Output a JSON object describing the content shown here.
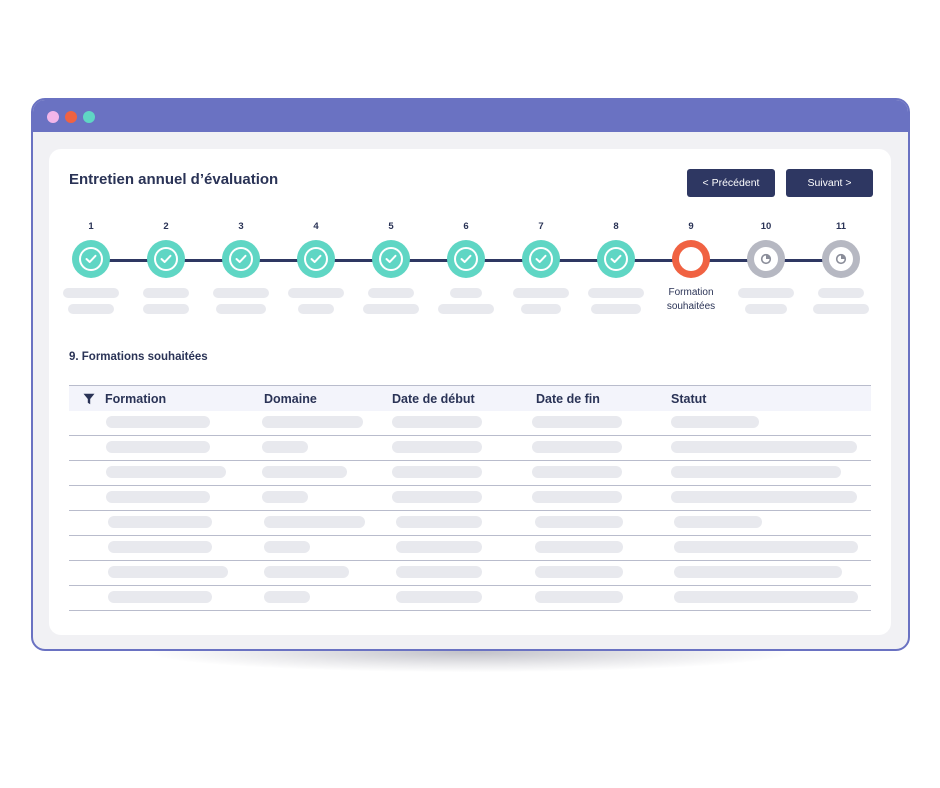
{
  "app": {
    "title": "Entretien annuel d’évaluation",
    "buttons": {
      "previous": "< Précédent",
      "next": "Suivant >"
    }
  },
  "colors": {
    "window_frame": "#6a72c2",
    "accent_done": "#5fd6c4",
    "accent_current": "#f06242",
    "accent_todo": "#b6b8c2",
    "navy": "#2e3762"
  },
  "stepper": {
    "steps": [
      {
        "number": "1",
        "status": "done",
        "icon": "check-icon"
      },
      {
        "number": "2",
        "status": "done",
        "icon": "check-icon"
      },
      {
        "number": "3",
        "status": "done",
        "icon": "check-icon"
      },
      {
        "number": "4",
        "status": "done",
        "icon": "check-icon"
      },
      {
        "number": "5",
        "status": "done",
        "icon": "check-icon"
      },
      {
        "number": "6",
        "status": "done",
        "icon": "check-icon"
      },
      {
        "number": "7",
        "status": "done",
        "icon": "check-icon"
      },
      {
        "number": "8",
        "status": "done",
        "icon": "check-icon"
      },
      {
        "number": "9",
        "status": "current",
        "label_line1": "Formation",
        "label_line2": "souhaitées"
      },
      {
        "number": "10",
        "status": "todo",
        "icon": "clock-icon"
      },
      {
        "number": "11",
        "status": "todo",
        "icon": "clock-icon"
      }
    ]
  },
  "section": {
    "title": "9. Formations souhaitées"
  },
  "table": {
    "headers": {
      "formation": "Formation",
      "domaine": "Domaine",
      "date_debut": "Date de début",
      "date_fin": "Date de fin",
      "statut": "Statut"
    },
    "filter_icon": "filter-icon"
  }
}
